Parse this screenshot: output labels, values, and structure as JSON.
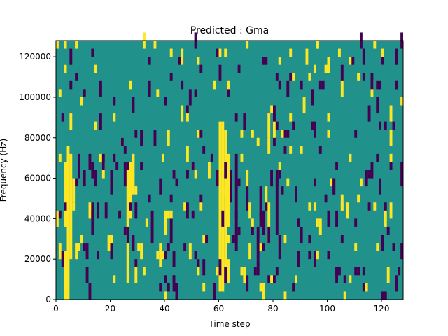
{
  "chart_data": {
    "type": "heatmap",
    "title": "Predicted : Gma",
    "xlabel": "Time step",
    "ylabel": "Frequency (Hz)",
    "xlim": [
      0,
      128
    ],
    "ylim": [
      0,
      128000
    ],
    "x_ticks": [
      0,
      20,
      40,
      60,
      80,
      100,
      120
    ],
    "y_ticks": [
      0,
      20000,
      40000,
      60000,
      80000,
      100000,
      120000
    ],
    "x_tick_labels": [
      "0",
      "20",
      "40",
      "60",
      "80",
      "100",
      "120"
    ],
    "y_tick_labels": [
      "0",
      "20000",
      "40000",
      "60000",
      "80000",
      "100000",
      "120000"
    ],
    "colors": {
      "background": "#21918c",
      "high": "#fde725",
      "low": "#440154"
    },
    "freq_bin_hz": 4000,
    "high_cells": [
      {
        "t": 3,
        "f0": 36000,
        "f1": 68000
      },
      {
        "t": 3,
        "f0": 0,
        "f1": 24000
      },
      {
        "t": 4,
        "f0": 4000,
        "f1": 76000
      },
      {
        "t": 5,
        "f0": 20000,
        "f1": 72000
      },
      {
        "t": 6,
        "f0": 48000,
        "f1": 60000
      },
      {
        "t": 7,
        "f0": 124000,
        "f1": 128000
      },
      {
        "t": 9,
        "f0": 96000,
        "f1": 100000
      },
      {
        "t": 26,
        "f0": 8000,
        "f1": 64000
      },
      {
        "t": 27,
        "f0": 40000,
        "f1": 68000
      },
      {
        "t": 28,
        "f0": 52000,
        "f1": 72000
      },
      {
        "t": 29,
        "f0": 8000,
        "f1": 16000
      },
      {
        "t": 38,
        "f0": 16000,
        "f1": 28000
      },
      {
        "t": 40,
        "f0": 32000,
        "f1": 44000
      },
      {
        "t": 40,
        "f0": 0,
        "f1": 4000
      },
      {
        "t": 54,
        "f0": 28000,
        "f1": 32000
      },
      {
        "t": 56,
        "f0": 64000,
        "f1": 68000
      },
      {
        "t": 59,
        "f0": 12000,
        "f1": 16000
      },
      {
        "t": 60,
        "f0": 4000,
        "f1": 88000
      },
      {
        "t": 61,
        "f0": 4000,
        "f1": 88000
      },
      {
        "t": 62,
        "f0": 16000,
        "f1": 84000
      },
      {
        "t": 63,
        "f0": 36000,
        "f1": 72000
      },
      {
        "t": 63,
        "f0": 8000,
        "f1": 20000
      },
      {
        "t": 71,
        "f0": 20000,
        "f1": 28000
      },
      {
        "t": 78,
        "f0": 28000,
        "f1": 48000
      },
      {
        "t": 78,
        "f0": 84000,
        "f1": 92000
      },
      {
        "t": 93,
        "f0": 108000,
        "f1": 112000
      },
      {
        "t": 100,
        "f0": 88000,
        "f1": 92000
      },
      {
        "t": 105,
        "f0": 100000,
        "f1": 108000
      },
      {
        "t": 118,
        "f0": 24000,
        "f1": 28000
      },
      {
        "t": 123,
        "f0": 68000,
        "f1": 72000
      },
      {
        "t": 127,
        "f0": 96000,
        "f1": 100000
      }
    ],
    "low_cells": [
      {
        "t": 8,
        "f0": 60000,
        "f1": 72000
      },
      {
        "t": 10,
        "f0": 56000,
        "f1": 64000
      },
      {
        "t": 11,
        "f0": 8000,
        "f1": 16000
      },
      {
        "t": 13,
        "f0": 32000,
        "f1": 40000
      },
      {
        "t": 20,
        "f0": 52000,
        "f1": 64000
      },
      {
        "t": 25,
        "f0": 56000,
        "f1": 68000
      },
      {
        "t": 35,
        "f0": 32000,
        "f1": 44000
      },
      {
        "t": 38,
        "f0": 52000,
        "f1": 60000
      },
      {
        "t": 42,
        "f0": 28000,
        "f1": 40000
      },
      {
        "t": 48,
        "f0": 40000,
        "f1": 48000
      },
      {
        "t": 51,
        "f0": 60000,
        "f1": 64000
      },
      {
        "t": 64,
        "f0": 52000,
        "f1": 64000
      },
      {
        "t": 66,
        "f0": 28000,
        "f1": 72000
      },
      {
        "t": 70,
        "f0": 44000,
        "f1": 60000
      },
      {
        "t": 74,
        "f0": 20000,
        "f1": 36000
      },
      {
        "t": 75,
        "f0": 40000,
        "f1": 56000
      },
      {
        "t": 76,
        "f0": 32000,
        "f1": 44000
      },
      {
        "t": 81,
        "f0": 32000,
        "f1": 64000
      },
      {
        "t": 82,
        "f0": 20000,
        "f1": 32000
      },
      {
        "t": 88,
        "f0": 48000,
        "f1": 56000
      },
      {
        "t": 90,
        "f0": 28000,
        "f1": 36000
      },
      {
        "t": 95,
        "f0": 56000,
        "f1": 60000
      },
      {
        "t": 100,
        "f0": 36000,
        "f1": 44000
      },
      {
        "t": 114,
        "f0": 56000,
        "f1": 64000
      },
      {
        "t": 120,
        "f0": 24000,
        "f1": 32000
      },
      {
        "t": 125,
        "f0": 104000,
        "f1": 108000
      },
      {
        "t": 127,
        "f0": 56000,
        "f1": 68000
      },
      {
        "t": 127,
        "f0": 20000,
        "f1": 28000
      }
    ]
  }
}
